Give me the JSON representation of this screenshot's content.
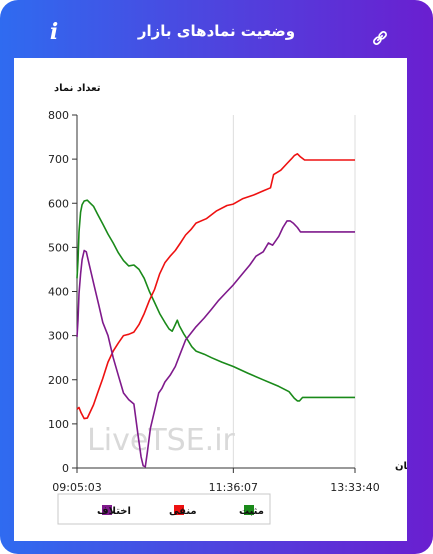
{
  "header": {
    "title": "وضعیت نمادهای بازار",
    "left_icon": "info-icon",
    "right_icon": "link-icon"
  },
  "chart_data": {
    "type": "line",
    "title": "",
    "ylabel": "تعداد نماد",
    "xlabel": "زمان",
    "ylim": [
      0,
      800
    ],
    "yticks": [
      0,
      100,
      200,
      300,
      400,
      500,
      600,
      700,
      800
    ],
    "xticks": [
      "09:05:03",
      "11:36:07",
      "13:33:40"
    ],
    "x_range": [
      "09:05:03",
      "13:33:40"
    ],
    "watermark": "LiveTSE.ir",
    "grid": "vertical",
    "legend_position": "bottom",
    "series": [
      {
        "name": "مثبت",
        "color": "#1a8a1a",
        "points": [
          [
            "09:05:03",
            430
          ],
          [
            "09:06:00",
            470
          ],
          [
            "09:07:00",
            535
          ],
          [
            "09:08:30",
            580
          ],
          [
            "09:10:00",
            597
          ],
          [
            "09:12:00",
            605
          ],
          [
            "09:15:00",
            607
          ],
          [
            "09:18:00",
            600
          ],
          [
            "09:21:00",
            593
          ],
          [
            "09:25:00",
            575
          ],
          [
            "09:30:00",
            553
          ],
          [
            "09:35:00",
            530
          ],
          [
            "09:40:00",
            510
          ],
          [
            "09:45:00",
            488
          ],
          [
            "09:50:00",
            470
          ],
          [
            "09:55:00",
            458
          ],
          [
            "10:00:00",
            460
          ],
          [
            "10:05:00",
            450
          ],
          [
            "10:10:00",
            430
          ],
          [
            "10:15:00",
            400
          ],
          [
            "10:20:00",
            375
          ],
          [
            "10:25:00",
            350
          ],
          [
            "10:30:00",
            330
          ],
          [
            "10:34:00",
            315
          ],
          [
            "10:37:00",
            310
          ],
          [
            "10:40:00",
            325
          ],
          [
            "10:42:00",
            335
          ],
          [
            "10:44:00",
            322
          ],
          [
            "10:48:00",
            305
          ],
          [
            "10:52:00",
            290
          ],
          [
            "10:56:00",
            275
          ],
          [
            "11:00:00",
            265
          ],
          [
            "11:08:00",
            258
          ],
          [
            "11:15:00",
            250
          ],
          [
            "11:25:00",
            240
          ],
          [
            "11:36:07",
            230
          ],
          [
            "11:50:00",
            215
          ],
          [
            "12:05:00",
            200
          ],
          [
            "12:20:00",
            185
          ],
          [
            "12:30:00",
            173
          ],
          [
            "12:35:00",
            158
          ],
          [
            "12:38:00",
            152
          ],
          [
            "12:40:00",
            152
          ],
          [
            "12:43:00",
            160
          ],
          [
            "12:50:00",
            160
          ],
          [
            "13:00:00",
            160
          ],
          [
            "13:33:40",
            160
          ]
        ]
      },
      {
        "name": "منفی",
        "color": "#ee1111",
        "points": [
          [
            "09:05:03",
            133
          ],
          [
            "09:07:00",
            137
          ],
          [
            "09:09:00",
            125
          ],
          [
            "09:12:00",
            112
          ],
          [
            "09:15:00",
            113
          ],
          [
            "09:18:00",
            128
          ],
          [
            "09:21:00",
            143
          ],
          [
            "09:25:00",
            170
          ],
          [
            "09:30:00",
            203
          ],
          [
            "09:35:00",
            240
          ],
          [
            "09:40:00",
            265
          ],
          [
            "09:45:00",
            283
          ],
          [
            "09:50:00",
            300
          ],
          [
            "09:55:00",
            303
          ],
          [
            "10:00:00",
            308
          ],
          [
            "10:05:00",
            325
          ],
          [
            "10:10:00",
            350
          ],
          [
            "10:15:00",
            380
          ],
          [
            "10:20:00",
            405
          ],
          [
            "10:25:00",
            440
          ],
          [
            "10:30:00",
            465
          ],
          [
            "10:35:00",
            480
          ],
          [
            "10:40:00",
            493
          ],
          [
            "10:45:00",
            510
          ],
          [
            "10:50:00",
            528
          ],
          [
            "10:55:00",
            540
          ],
          [
            "11:00:00",
            555
          ],
          [
            "11:10:00",
            565
          ],
          [
            "11:20:00",
            583
          ],
          [
            "11:30:00",
            595
          ],
          [
            "11:36:07",
            598
          ],
          [
            "11:45:00",
            610
          ],
          [
            "11:55:00",
            618
          ],
          [
            "12:05:00",
            628
          ],
          [
            "12:12:00",
            635
          ],
          [
            "12:15:00",
            665
          ],
          [
            "12:22:00",
            675
          ],
          [
            "12:28:00",
            690
          ],
          [
            "12:32:00",
            700
          ],
          [
            "12:35:00",
            708
          ],
          [
            "12:38:00",
            712
          ],
          [
            "12:41:00",
            705
          ],
          [
            "12:45:00",
            698
          ],
          [
            "13:00:00",
            698
          ],
          [
            "13:33:40",
            698
          ]
        ]
      },
      {
        "name": "اختلاف",
        "color": "#7f1a8c",
        "points": [
          [
            "09:05:03",
            297
          ],
          [
            "09:06:00",
            335
          ],
          [
            "09:07:00",
            395
          ],
          [
            "09:08:30",
            440
          ],
          [
            "09:10:00",
            472
          ],
          [
            "09:12:00",
            493
          ],
          [
            "09:14:00",
            490
          ],
          [
            "09:16:00",
            470
          ],
          [
            "09:19:00",
            440
          ],
          [
            "09:22:00",
            410
          ],
          [
            "09:26:00",
            370
          ],
          [
            "09:30:00",
            330
          ],
          [
            "09:35:00",
            300
          ],
          [
            "09:40:00",
            250
          ],
          [
            "09:45:00",
            210
          ],
          [
            "09:50:00",
            170
          ],
          [
            "09:55:00",
            155
          ],
          [
            "10:00:00",
            145
          ],
          [
            "10:04:00",
            75
          ],
          [
            "10:07:00",
            25
          ],
          [
            "10:09:00",
            5
          ],
          [
            "10:11:00",
            3
          ],
          [
            "10:13:00",
            35
          ],
          [
            "10:16:00",
            90
          ],
          [
            "10:20:00",
            130
          ],
          [
            "10:24:00",
            170
          ],
          [
            "10:27:00",
            180
          ],
          [
            "10:30:00",
            195
          ],
          [
            "10:35:00",
            210
          ],
          [
            "10:40:00",
            230
          ],
          [
            "10:45:00",
            260
          ],
          [
            "10:50:00",
            290
          ],
          [
            "10:55:00",
            305
          ],
          [
            "11:00:00",
            320
          ],
          [
            "11:08:00",
            340
          ],
          [
            "11:15:00",
            360
          ],
          [
            "11:22:00",
            380
          ],
          [
            "11:30:00",
            400
          ],
          [
            "11:36:07",
            415
          ],
          [
            "11:45:00",
            440
          ],
          [
            "11:52:00",
            460
          ],
          [
            "11:58:00",
            480
          ],
          [
            "12:05:00",
            490
          ],
          [
            "12:10:00",
            510
          ],
          [
            "12:14:00",
            505
          ],
          [
            "12:17:00",
            515
          ],
          [
            "12:20:00",
            525
          ],
          [
            "12:24:00",
            545
          ],
          [
            "12:28:00",
            560
          ],
          [
            "12:31:00",
            560
          ],
          [
            "12:34:00",
            555
          ],
          [
            "12:38:00",
            545
          ],
          [
            "12:41:00",
            535
          ],
          [
            "12:50:00",
            535
          ],
          [
            "13:00:00",
            535
          ],
          [
            "13:33:40",
            535
          ]
        ]
      }
    ]
  }
}
